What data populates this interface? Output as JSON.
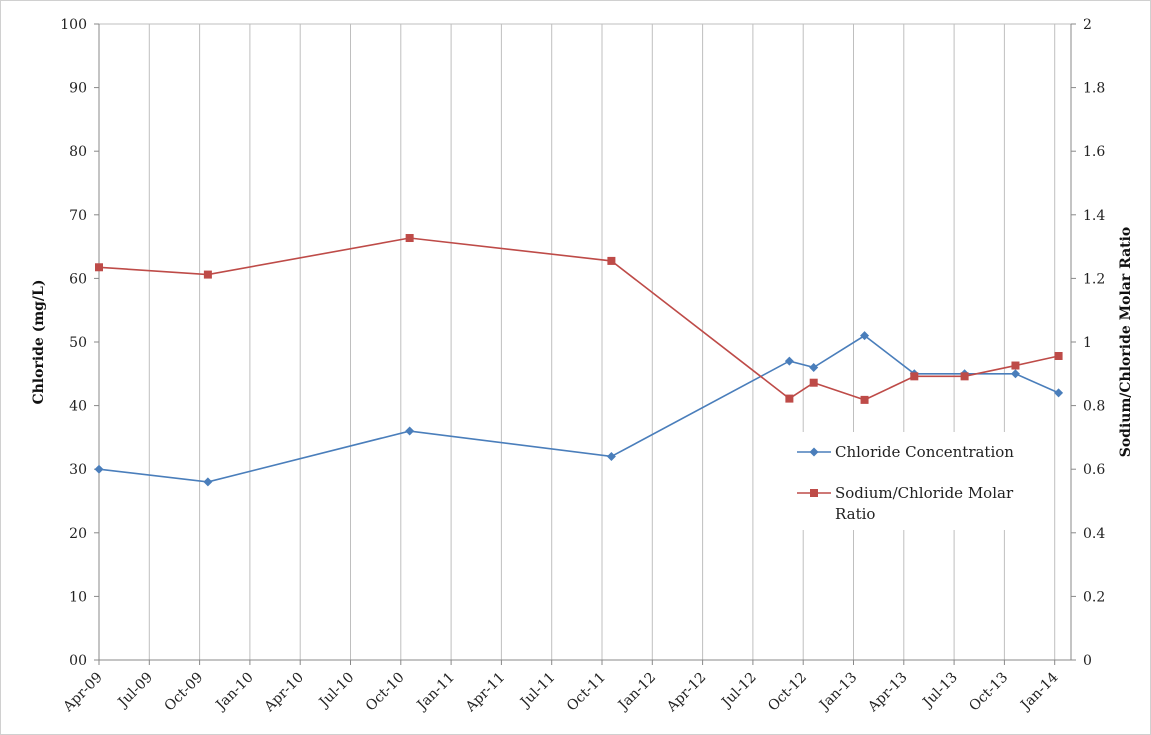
{
  "chart_data": {
    "type": "line",
    "x_labels": [
      "Apr-09",
      "Jul-09",
      "Oct-09",
      "Jan-10",
      "Apr-10",
      "Jul-10",
      "Oct-10",
      "Jan-11",
      "Apr-11",
      "Jul-11",
      "Oct-11",
      "Jan-12",
      "Apr-12",
      "Jul-12",
      "Oct-12",
      "Jan-13",
      "Apr-13",
      "Jul-13",
      "Oct-13",
      "Jan-14"
    ],
    "y_left": {
      "label": "Chloride (mg/L)",
      "ticks": [
        "00",
        "10",
        "20",
        "30",
        "40",
        "50",
        "60",
        "70",
        "80",
        "90",
        "100"
      ],
      "min": 0,
      "max": 100
    },
    "y_right": {
      "label": "Sodium/Chloride Molar Ratio",
      "ticks": [
        "0",
        "0.2",
        "0.4",
        "0.6",
        "0.8",
        "1",
        "1.2",
        "1.4",
        "1.6",
        "1.8",
        "2"
      ],
      "min": 0,
      "max": 2
    },
    "grid": "vertical",
    "legend_position": "right",
    "series": [
      {
        "name": "Chloride Concentration",
        "axis": "left",
        "color": "#4a7ebb",
        "marker": "diamond",
        "x": [
          "2009-04-01",
          "2009-10-15",
          "2010-10-15",
          "2011-10-15",
          "2012-09-01",
          "2012-10-15",
          "2013-01-15",
          "2013-04-15",
          "2013-07-15",
          "2013-10-15",
          "2014-01-01"
        ],
        "y": [
          30,
          28,
          36,
          32,
          47,
          46,
          51,
          45,
          45,
          45,
          42
        ]
      },
      {
        "name": "Sodium/Chloride Molar Ratio",
        "axis": "right",
        "color": "#be4b48",
        "marker": "square",
        "x": [
          "2009-04-01",
          "2009-10-15",
          "2010-10-15",
          "2011-10-15",
          "2012-09-01",
          "2012-10-15",
          "2013-01-15",
          "2013-04-15",
          "2013-07-15",
          "2013-10-15",
          "2014-01-01"
        ],
        "y": [
          1.235,
          1.212,
          1.327,
          1.255,
          0.822,
          0.872,
          0.818,
          0.892,
          0.892,
          0.926,
          0.956
        ]
      }
    ],
    "legend": {
      "entries": [
        {
          "lines": [
            "Chloride Concentration"
          ],
          "color": "#4a7ebb",
          "marker": "diamond"
        },
        {
          "lines": [
            "Sodium/Chloride Molar",
            "Ratio"
          ],
          "color": "#be4b48",
          "marker": "square"
        }
      ]
    }
  }
}
